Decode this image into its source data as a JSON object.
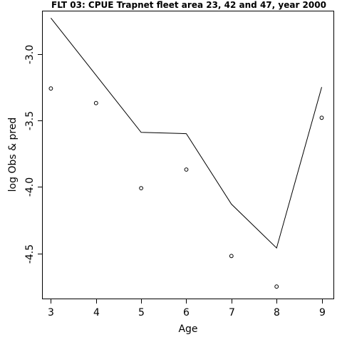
{
  "chart_data": {
    "type": "line",
    "title": "FLT 03: CPUE Trapnet fleet area 23, 42 and 47, year 2000",
    "xlabel": "Age",
    "ylabel": "log Obs & pred",
    "xlim": [
      2.82,
      9.26
    ],
    "ylim": [
      -4.84,
      -2.68
    ],
    "x_ticks": [
      3,
      4,
      5,
      6,
      7,
      8,
      9
    ],
    "y_ticks": [
      -4.5,
      -4.0,
      -3.5,
      -3.0
    ],
    "y_tick_labels": [
      "-4.5",
      "-4.0",
      "-3.5",
      "-3.0"
    ],
    "grid": false,
    "series": [
      {
        "style": "line",
        "x": [
          3,
          4,
          5,
          6,
          7,
          8,
          9
        ],
        "y": [
          -2.73,
          -3.16,
          -3.59,
          -3.6,
          -4.13,
          -4.46,
          -3.25
        ]
      },
      {
        "style": "points",
        "x": [
          3,
          4,
          5,
          6,
          7,
          8,
          9
        ],
        "y": [
          -3.26,
          -3.37,
          -4.01,
          -3.87,
          -4.52,
          -4.75,
          -3.48
        ]
      }
    ]
  }
}
